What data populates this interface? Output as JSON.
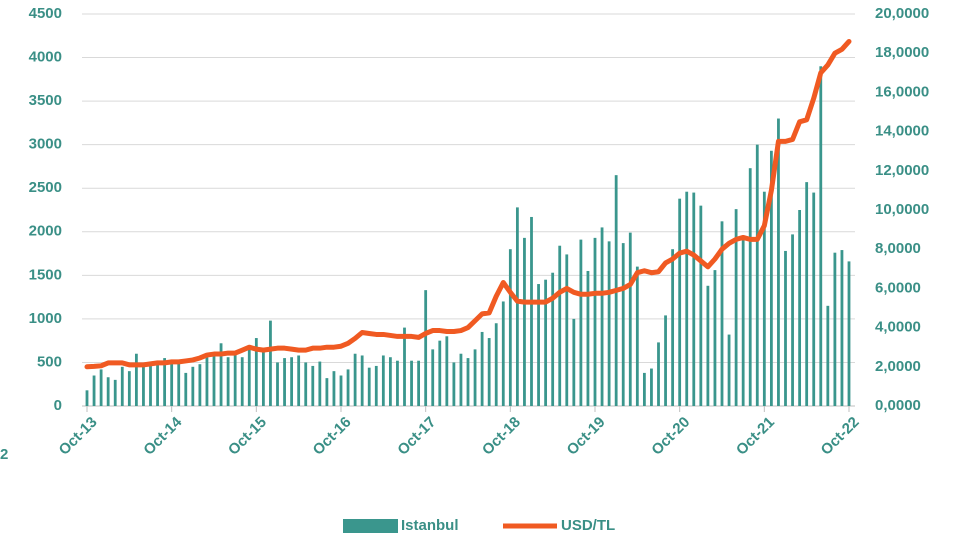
{
  "chart_data": {
    "type": "bar-line",
    "categories": [
      "Oct-13",
      null,
      null,
      null,
      null,
      null,
      null,
      null,
      null,
      null,
      null,
      null,
      "Oct-14",
      null,
      null,
      null,
      null,
      null,
      null,
      null,
      null,
      null,
      null,
      null,
      "Oct-15",
      null,
      null,
      null,
      null,
      null,
      null,
      null,
      null,
      null,
      null,
      null,
      "Oct-16",
      null,
      null,
      null,
      null,
      null,
      null,
      null,
      null,
      null,
      null,
      null,
      "Oct-17",
      null,
      null,
      null,
      null,
      null,
      null,
      null,
      null,
      null,
      null,
      null,
      "Oct-18",
      null,
      null,
      null,
      null,
      null,
      null,
      null,
      null,
      null,
      null,
      null,
      "Oct-19",
      null,
      null,
      null,
      null,
      null,
      null,
      null,
      null,
      null,
      null,
      null,
      "Oct-20",
      null,
      null,
      null,
      null,
      null,
      null,
      null,
      null,
      null,
      null,
      null,
      "Oct-21",
      null,
      null,
      null,
      null,
      null,
      null,
      null,
      null,
      null,
      null,
      null,
      "Oct-22"
    ],
    "series": [
      {
        "name": "Istanbul",
        "type": "bar",
        "color": "#3a968d",
        "values": [
          180,
          350,
          420,
          330,
          300,
          450,
          400,
          600,
          450,
          500,
          520,
          550,
          520,
          500,
          380,
          450,
          480,
          560,
          620,
          720,
          560,
          620,
          560,
          680,
          780,
          620,
          980,
          500,
          550,
          560,
          580,
          500,
          460,
          510,
          320,
          400,
          350,
          420,
          600,
          580,
          440,
          460,
          580,
          560,
          520,
          900,
          520,
          520,
          1330,
          650,
          750,
          800,
          500,
          600,
          550,
          650,
          850,
          780,
          950,
          1200,
          1800,
          2280,
          1930,
          2170,
          1400,
          1450,
          1530,
          1840,
          1740,
          1000,
          1910,
          1550,
          1930,
          2050,
          1890,
          2650,
          1870,
          1990,
          1600,
          380,
          430,
          730,
          1040,
          1800,
          2380,
          2460,
          2450,
          2300,
          1380,
          1560,
          2120,
          820,
          2260,
          1900,
          2730,
          3000,
          2460,
          2930,
          3300,
          1780,
          1970,
          2250,
          2570,
          2450,
          3900,
          1150,
          1760,
          1790,
          1660
        ]
      },
      {
        "name": "USD/TL",
        "type": "line",
        "axis": "y2",
        "color": "#f05a22",
        "values": [
          2.0,
          2.02,
          2.05,
          2.2,
          2.2,
          2.2,
          2.1,
          2.1,
          2.1,
          2.15,
          2.2,
          2.2,
          2.25,
          2.25,
          2.3,
          2.35,
          2.45,
          2.6,
          2.65,
          2.65,
          2.7,
          2.7,
          2.85,
          3.0,
          2.9,
          2.85,
          2.9,
          2.95,
          2.95,
          2.9,
          2.85,
          2.85,
          2.95,
          2.95,
          3.0,
          3.0,
          3.05,
          3.2,
          3.45,
          3.75,
          3.7,
          3.65,
          3.65,
          3.6,
          3.55,
          3.55,
          3.55,
          3.5,
          3.7,
          3.85,
          3.85,
          3.8,
          3.8,
          3.85,
          4.0,
          4.35,
          4.7,
          4.75,
          5.6,
          6.3,
          5.8,
          5.35,
          5.3,
          5.3,
          5.3,
          5.3,
          5.5,
          5.8,
          6.0,
          5.8,
          5.7,
          5.7,
          5.75,
          5.75,
          5.8,
          5.9,
          6.0,
          6.2,
          6.8,
          6.9,
          6.8,
          6.85,
          7.3,
          7.5,
          7.8,
          7.9,
          7.7,
          7.4,
          7.1,
          7.5,
          8.0,
          8.3,
          8.5,
          8.6,
          8.5,
          8.5,
          9.2,
          11.0,
          13.5,
          13.5,
          13.6,
          14.5,
          14.6,
          15.7,
          17.0,
          17.4,
          18.0,
          18.2,
          18.6
        ]
      }
    ],
    "ylim": [
      0,
      4500
    ],
    "yticks": [
      0,
      500,
      1000,
      1500,
      2000,
      2500,
      3000,
      3500,
      4000,
      4500
    ],
    "y2lim": [
      0,
      20
    ],
    "y2ticks": [
      {
        "value": 0,
        "label": "0,0000"
      },
      {
        "value": 2,
        "label": "2,0000"
      },
      {
        "value": 4,
        "label": "4,0000"
      },
      {
        "value": 6,
        "label": "6,0000"
      },
      {
        "value": 8,
        "label": "8,0000"
      },
      {
        "value": 10,
        "label": "10,0000"
      },
      {
        "value": 12,
        "label": "12,0000"
      },
      {
        "value": 14,
        "label": "14,0000"
      },
      {
        "value": 16,
        "label": "16,0000"
      },
      {
        "value": 18,
        "label": "18,0000"
      },
      {
        "value": 20,
        "label": "20,0000"
      }
    ],
    "grid": true,
    "legend": "bottom",
    "annotation": "2"
  }
}
